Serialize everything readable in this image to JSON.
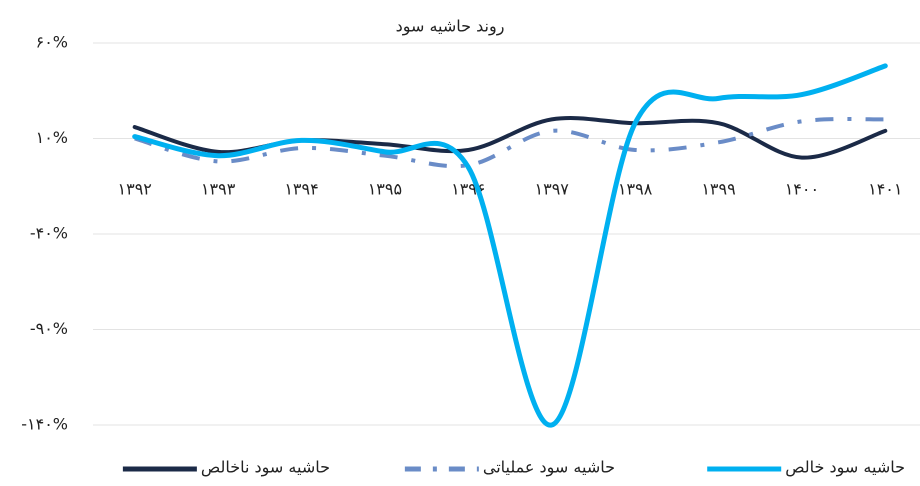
{
  "chart_data": {
    "type": "line",
    "title": "روند حاشیه سود",
    "categories": [
      "۱۳۹۲",
      "۱۳۹۳",
      "۱۳۹۴",
      "۱۳۹۵",
      "۱۳۹۶",
      "۱۳۹۷",
      "۱۳۹۸",
      "۱۳۹۹",
      "۱۴۰۰",
      "۱۴۰۱"
    ],
    "series": [
      {
        "name": "حاشیه سود خالص",
        "color": "#00b0f0",
        "dash": "solid",
        "values": [
          11,
          1,
          9,
          3,
          -5,
          -140,
          18,
          31,
          33,
          48
        ]
      },
      {
        "name": "حاشیه سود عملیاتی",
        "color": "#6a8cc7",
        "dash": "dashdot",
        "values": [
          10,
          -2,
          5,
          1,
          -4,
          14,
          4,
          8,
          19,
          20
        ]
      },
      {
        "name": "حاشیه سود ناخالص",
        "color": "#1b2a47",
        "dash": "solid",
        "values": [
          16,
          3,
          9,
          7,
          4,
          20,
          18,
          18,
          0,
          14
        ]
      }
    ],
    "ylim": [
      -140,
      60
    ],
    "yticks": [
      {
        "value": 60,
        "label": "۶۰%"
      },
      {
        "value": 10,
        "label": "۱۰%"
      },
      {
        "value": -40,
        "label": "-۴۰%"
      },
      {
        "value": -90,
        "label": "-۹۰%"
      },
      {
        "value": -140,
        "label": "-۱۴۰%"
      }
    ],
    "grid": true,
    "legend": "bottom"
  }
}
